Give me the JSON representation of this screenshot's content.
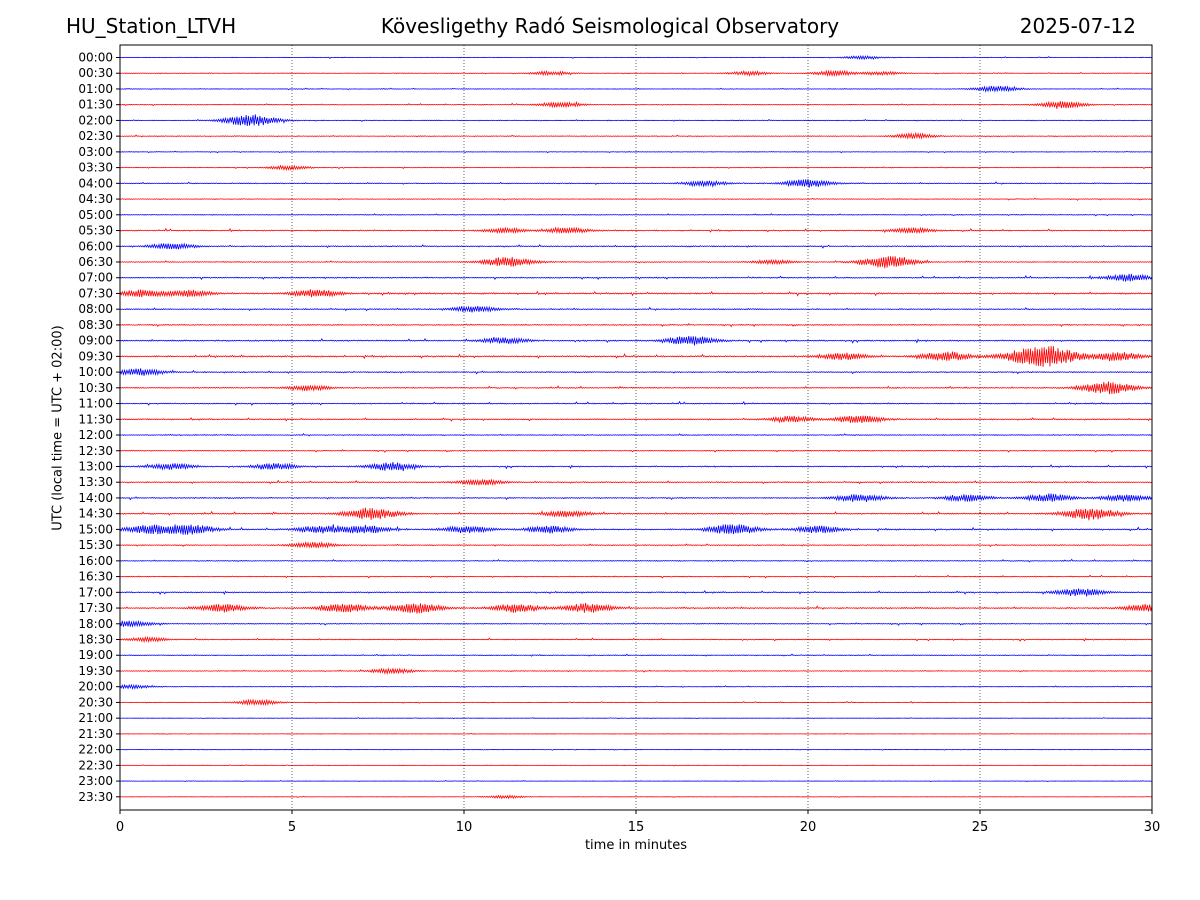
{
  "header": {
    "station": "HU_Station_LTVH",
    "observatory": "Kövesligethy Radó Seismological Observatory",
    "date": "2025-07-12"
  },
  "chart_data": {
    "type": "line",
    "title": "Kövesligethy Radó Seismological Observatory",
    "xlabel": "time in minutes",
    "ylabel": "UTC (local time = UTC + 02:00)",
    "xlim": [
      0,
      30
    ],
    "x_ticks": [
      0,
      5,
      10,
      15,
      20,
      25,
      30
    ],
    "vertical_gridlines_at": [
      5,
      10,
      15,
      20,
      25
    ],
    "colors": {
      "even_hour": "#0000ff",
      "half_hour": "#ff0000",
      "grid": "#000000"
    },
    "rows": [
      "00:00",
      "00:30",
      "01:00",
      "01:30",
      "02:00",
      "02:30",
      "03:00",
      "03:30",
      "04:00",
      "04:30",
      "05:00",
      "05:30",
      "06:00",
      "06:30",
      "07:00",
      "07:30",
      "08:00",
      "08:30",
      "09:00",
      "09:30",
      "10:00",
      "10:30",
      "11:00",
      "11:30",
      "12:00",
      "12:30",
      "13:00",
      "13:30",
      "14:00",
      "14:30",
      "15:00",
      "15:30",
      "16:00",
      "16:30",
      "17:00",
      "17:30",
      "18:00",
      "18:30",
      "19:00",
      "19:30",
      "20:00",
      "20:30",
      "21:00",
      "21:30",
      "22:00",
      "22:30",
      "23:00",
      "23:30"
    ],
    "row_noise_level": [
      0.3,
      0.3,
      0.3,
      0.4,
      0.4,
      0.4,
      0.3,
      0.3,
      0.5,
      0.4,
      0.4,
      0.6,
      0.6,
      0.5,
      0.6,
      0.8,
      0.6,
      0.6,
      0.7,
      0.8,
      0.6,
      0.6,
      0.6,
      0.6,
      0.5,
      0.5,
      0.6,
      0.6,
      0.6,
      0.7,
      0.7,
      0.5,
      0.5,
      0.5,
      0.6,
      0.7,
      0.5,
      0.5,
      0.4,
      0.4,
      0.3,
      0.3,
      0.2,
      0.2,
      0.2,
      0.2,
      0.2,
      0.2
    ],
    "events": [
      {
        "row": "00:00",
        "t": 21.6,
        "amp": 1.5
      },
      {
        "row": "00:30",
        "t": 12.5,
        "amp": 2
      },
      {
        "row": "00:30",
        "t": 18.3,
        "amp": 2
      },
      {
        "row": "00:30",
        "t": 20.8,
        "amp": 2.5
      },
      {
        "row": "00:30",
        "t": 22.2,
        "amp": 1.5
      },
      {
        "row": "01:00",
        "t": 25.5,
        "amp": 3
      },
      {
        "row": "01:30",
        "t": 12.8,
        "amp": 2.5
      },
      {
        "row": "01:30",
        "t": 27.4,
        "amp": 3.5
      },
      {
        "row": "02:00",
        "t": 3.8,
        "amp": 6
      },
      {
        "row": "02:30",
        "t": 23.1,
        "amp": 2.5
      },
      {
        "row": "03:30",
        "t": 4.9,
        "amp": 2
      },
      {
        "row": "04:00",
        "t": 17.0,
        "amp": 2.5
      },
      {
        "row": "04:00",
        "t": 20.0,
        "amp": 4
      },
      {
        "row": "05:30",
        "t": 11.2,
        "amp": 2.5
      },
      {
        "row": "05:30",
        "t": 13.0,
        "amp": 2.5
      },
      {
        "row": "05:30",
        "t": 23.0,
        "amp": 2.5
      },
      {
        "row": "06:00",
        "t": 1.5,
        "amp": 3
      },
      {
        "row": "06:30",
        "t": 11.3,
        "amp": 5
      },
      {
        "row": "06:30",
        "t": 22.3,
        "amp": 6
      },
      {
        "row": "06:30",
        "t": 19.0,
        "amp": 2
      },
      {
        "row": "07:00",
        "t": 29.3,
        "amp": 3.5
      },
      {
        "row": "07:30",
        "t": 0.6,
        "amp": 3.5
      },
      {
        "row": "07:30",
        "t": 2.0,
        "amp": 3
      },
      {
        "row": "07:30",
        "t": 5.7,
        "amp": 4
      },
      {
        "row": "08:00",
        "t": 10.3,
        "amp": 3
      },
      {
        "row": "09:00",
        "t": 11.2,
        "amp": 3
      },
      {
        "row": "09:00",
        "t": 16.6,
        "amp": 4.5
      },
      {
        "row": "09:30",
        "t": 21.0,
        "amp": 3.5
      },
      {
        "row": "09:30",
        "t": 24.0,
        "amp": 4.5
      },
      {
        "row": "09:30",
        "t": 26.8,
        "amp": 11
      },
      {
        "row": "09:30",
        "t": 29.0,
        "amp": 4
      },
      {
        "row": "10:00",
        "t": 0.6,
        "amp": 3.5
      },
      {
        "row": "10:30",
        "t": 5.5,
        "amp": 2.5
      },
      {
        "row": "10:30",
        "t": 28.7,
        "amp": 6
      },
      {
        "row": "11:30",
        "t": 19.5,
        "amp": 3
      },
      {
        "row": "11:30",
        "t": 21.5,
        "amp": 4
      },
      {
        "row": "13:00",
        "t": 1.5,
        "amp": 3
      },
      {
        "row": "13:00",
        "t": 4.5,
        "amp": 3
      },
      {
        "row": "13:00",
        "t": 7.9,
        "amp": 4
      },
      {
        "row": "13:30",
        "t": 10.5,
        "amp": 3
      },
      {
        "row": "14:00",
        "t": 21.5,
        "amp": 4
      },
      {
        "row": "14:00",
        "t": 24.6,
        "amp": 3.5
      },
      {
        "row": "14:00",
        "t": 27.0,
        "amp": 4
      },
      {
        "row": "14:00",
        "t": 29.2,
        "amp": 3.5
      },
      {
        "row": "14:30",
        "t": 7.3,
        "amp": 6
      },
      {
        "row": "14:30",
        "t": 28.2,
        "amp": 6
      },
      {
        "row": "14:30",
        "t": 13.0,
        "amp": 3
      },
      {
        "row": "15:00",
        "t": 0.8,
        "amp": 4
      },
      {
        "row": "15:00",
        "t": 2.0,
        "amp": 5
      },
      {
        "row": "15:00",
        "t": 5.8,
        "amp": 3.5
      },
      {
        "row": "15:00",
        "t": 7.1,
        "amp": 4
      },
      {
        "row": "15:00",
        "t": 10.1,
        "amp": 3.5
      },
      {
        "row": "15:00",
        "t": 12.5,
        "amp": 3.5
      },
      {
        "row": "15:00",
        "t": 17.8,
        "amp": 5
      },
      {
        "row": "15:00",
        "t": 20.3,
        "amp": 3.5
      },
      {
        "row": "15:30",
        "t": 5.6,
        "amp": 3
      },
      {
        "row": "17:00",
        "t": 27.9,
        "amp": 4
      },
      {
        "row": "17:30",
        "t": 3.0,
        "amp": 4
      },
      {
        "row": "17:30",
        "t": 6.5,
        "amp": 4.5
      },
      {
        "row": "17:30",
        "t": 8.6,
        "amp": 5
      },
      {
        "row": "17:30",
        "t": 11.5,
        "amp": 4
      },
      {
        "row": "17:30",
        "t": 13.6,
        "amp": 4.5
      },
      {
        "row": "17:30",
        "t": 29.9,
        "amp": 4
      },
      {
        "row": "18:00",
        "t": 0.3,
        "amp": 3
      },
      {
        "row": "18:30",
        "t": 0.8,
        "amp": 2
      },
      {
        "row": "19:30",
        "t": 7.9,
        "amp": 2.5
      },
      {
        "row": "20:00",
        "t": 0.3,
        "amp": 2
      },
      {
        "row": "20:30",
        "t": 4.0,
        "amp": 2.5
      },
      {
        "row": "23:30",
        "t": 11.2,
        "amp": 1.5
      }
    ]
  }
}
